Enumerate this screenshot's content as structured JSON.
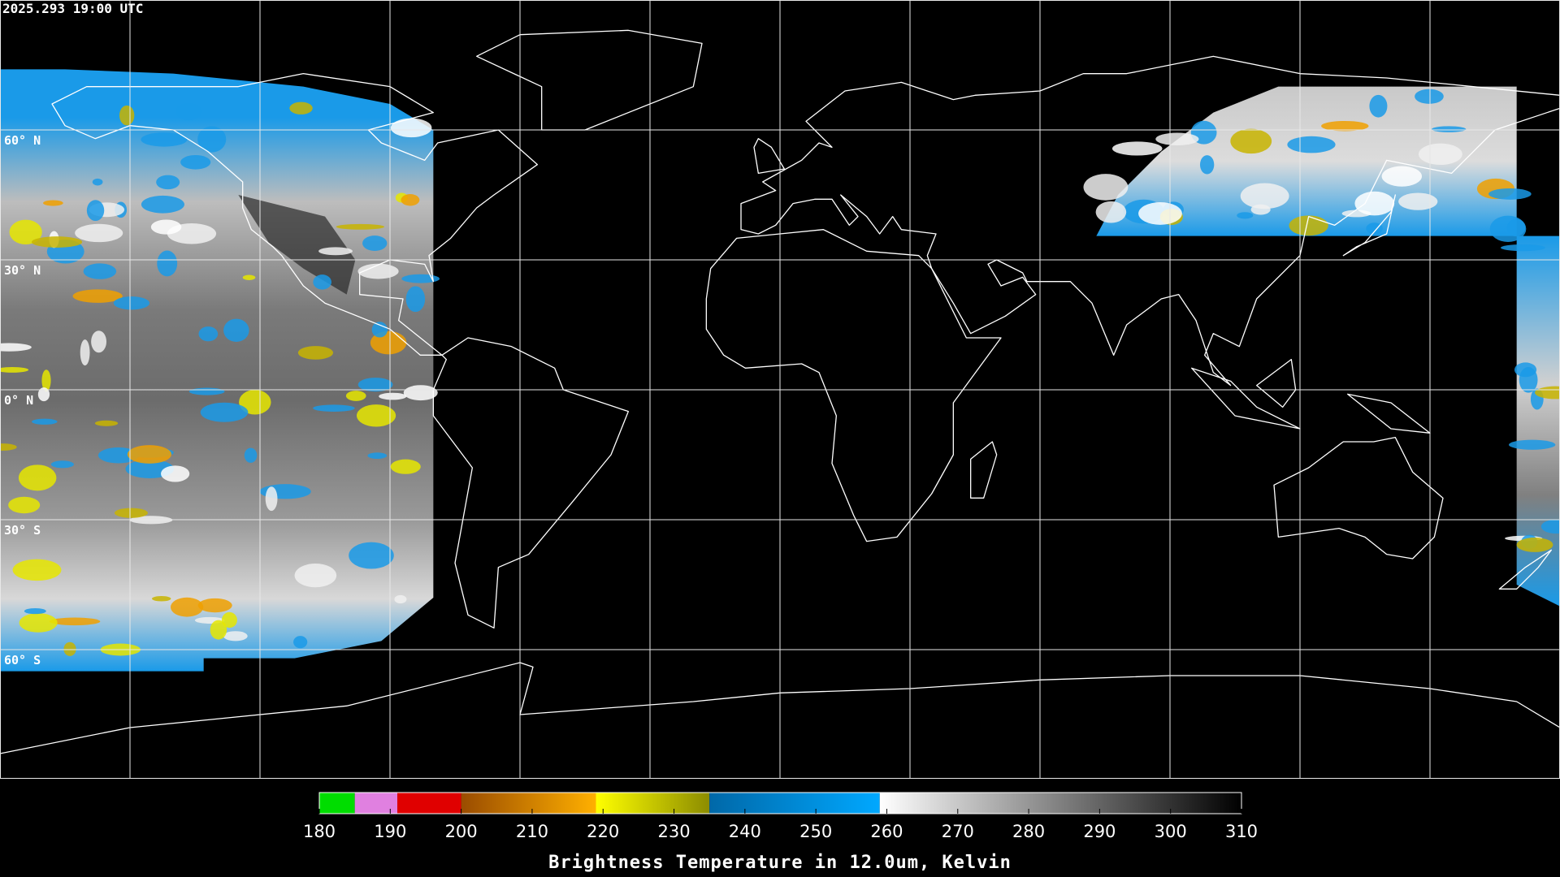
{
  "header": {
    "timestamp": "2025.293 19:00 UTC"
  },
  "map": {
    "lat_labels": [
      "60° N",
      "30° N",
      "0° N",
      "30° S",
      "60° S"
    ]
  },
  "colorbar": {
    "ticks": [
      180,
      190,
      200,
      210,
      220,
      230,
      240,
      250,
      260,
      270,
      280,
      290,
      300,
      310
    ],
    "title": "Brightness Temperature in 12.0um, Kelvin",
    "bands": [
      {
        "from": 180,
        "to": 185,
        "colors": [
          "#00dd00",
          "#00dd00"
        ]
      },
      {
        "from": 185,
        "to": 191,
        "colors": [
          "#e080e0",
          "#e080e0"
        ]
      },
      {
        "from": 191,
        "to": 200,
        "colors": [
          "#e00000",
          "#e00000"
        ]
      },
      {
        "from": 200,
        "to": 219,
        "colors": [
          "#9a4c00",
          "#ffb000"
        ]
      },
      {
        "from": 219,
        "to": 235,
        "colors": [
          "#ffff00",
          "#8c8c00"
        ]
      },
      {
        "from": 235,
        "to": 259,
        "colors": [
          "#0068a8",
          "#00a8ff"
        ]
      },
      {
        "from": 259,
        "to": 310,
        "colors": [
          "#ffffff",
          "#000000"
        ]
      }
    ]
  }
}
